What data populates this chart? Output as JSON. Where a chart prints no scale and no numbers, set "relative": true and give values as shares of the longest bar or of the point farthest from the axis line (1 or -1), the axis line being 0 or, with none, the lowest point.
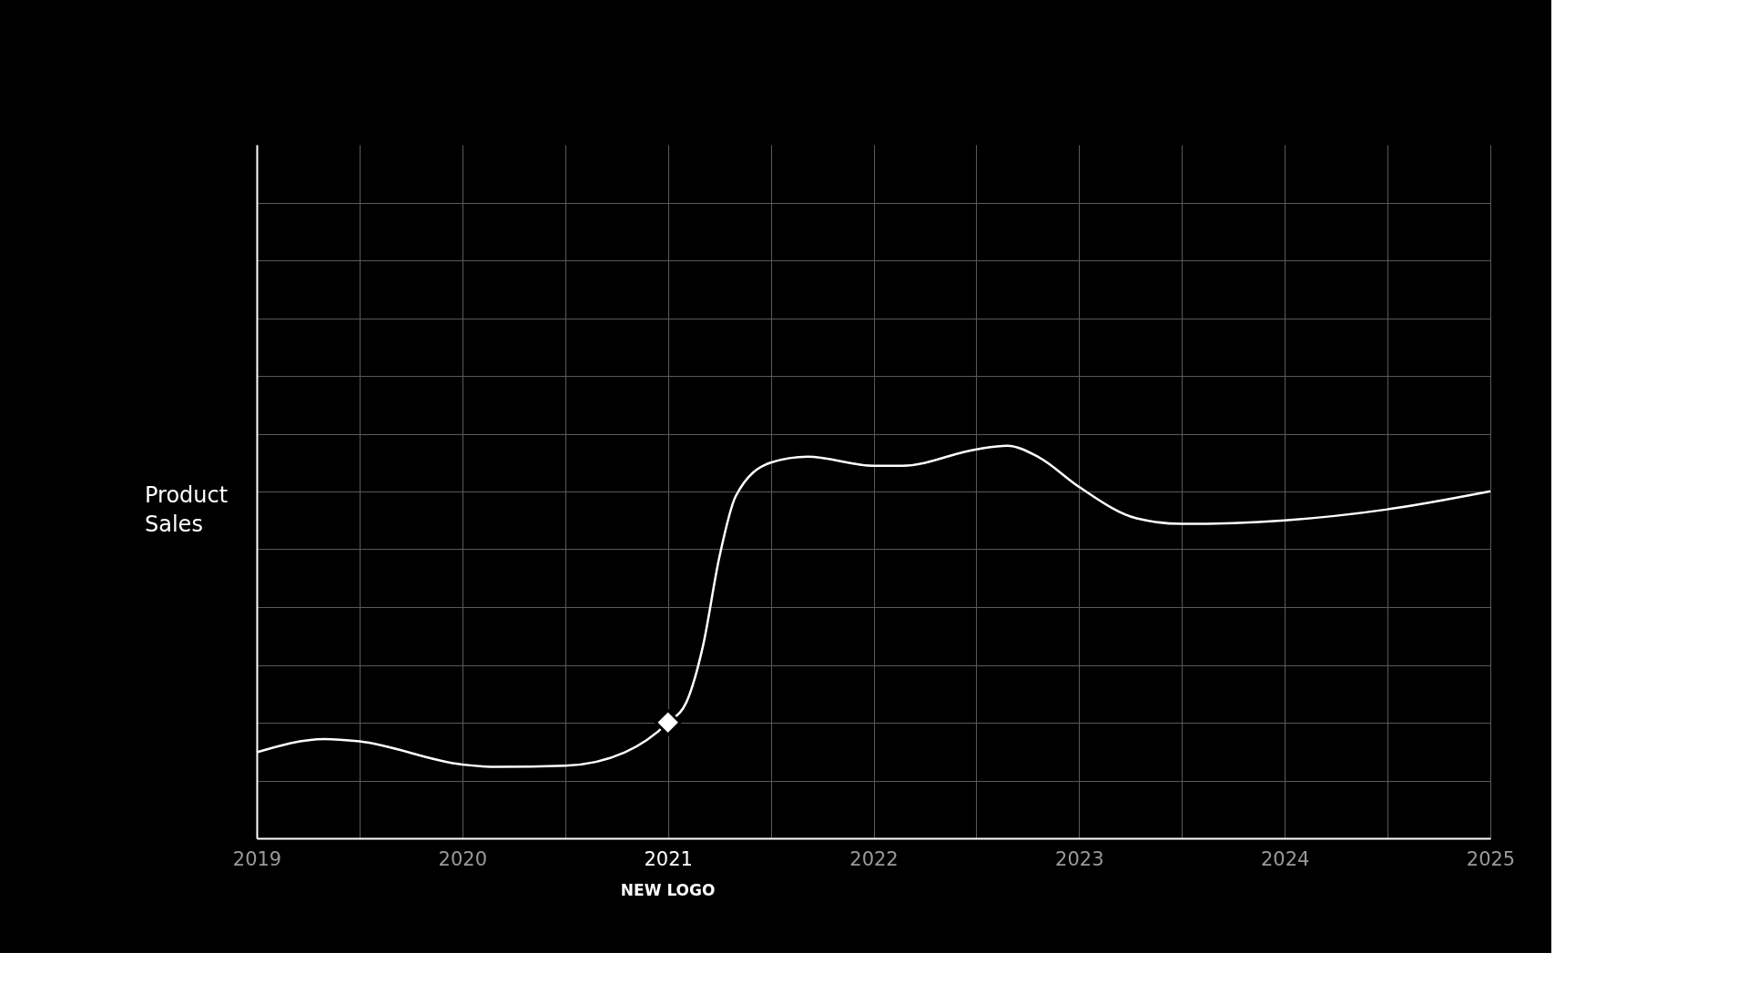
{
  "chart_data": {
    "type": "line",
    "ylabel": "Product Sales",
    "relative": true,
    "x": [
      2019,
      2019.33,
      2019.5,
      2020,
      2020.17,
      2020.5,
      2020.79,
      2021,
      2021.09,
      2021.17,
      2021.25,
      2021.33,
      2021.5,
      2021.68,
      2022,
      2022.14,
      2022.5,
      2022.65,
      2022.8,
      2023,
      2023.28,
      2023.5,
      2024,
      2024.5,
      2025
    ],
    "series": [
      {
        "color": "#ffffff",
        "values": [
          0.219,
          0.253,
          0.247,
          0.188,
          0.182,
          0.185,
          0.219,
          0.295,
          0.347,
          0.489,
          0.716,
          0.872,
          0.957,
          0.972,
          0.949,
          0.949,
          0.991,
          1,
          0.972,
          0.895,
          0.815,
          0.801,
          0.81,
          0.838,
          0.884
        ]
      }
    ],
    "xlim": [
      2019,
      2025
    ],
    "xticks": [
      2019,
      {
        "value": 2019.5,
        "label": null
      },
      2020,
      {
        "value": 2020.5,
        "label": null
      },
      2021,
      {
        "value": 2021.5,
        "label": null
      },
      2022,
      {
        "value": 2022.5,
        "label": null
      },
      2023,
      {
        "value": 2023.5,
        "label": null
      },
      2024,
      {
        "value": 2024.5,
        "label": null
      },
      2025
    ],
    "annotations": [
      "NEW LOGO"
    ],
    "grid": true,
    "marker": "none",
    "line_style": "solid"
  }
}
